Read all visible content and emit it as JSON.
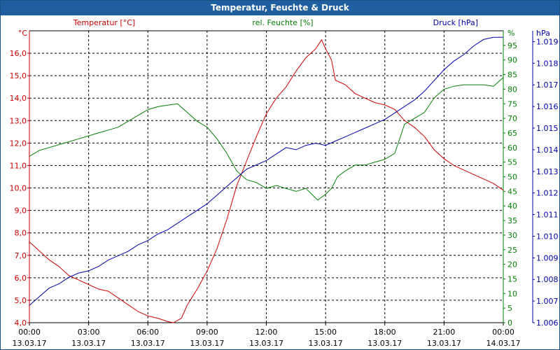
{
  "window": {
    "title": "Temperatur, Feuchte & Druck"
  },
  "colors": {
    "temperature": "#cc0000",
    "humidity": "#008000",
    "pressure": "#0000aa",
    "titlebar": "#1f5fa0"
  },
  "chart_data": {
    "type": "line",
    "title": "Temperatur, Feuchte & Druck",
    "grid": true,
    "x_tick_times": [
      "00:00",
      "03:00",
      "06:00",
      "09:00",
      "12:00",
      "15:00",
      "18:00",
      "21:00",
      "00:00"
    ],
    "x_tick_dates": [
      "13.03.17",
      "13.03.17",
      "13.03.17",
      "13.03.17",
      "13.03.17",
      "13.03.17",
      "13.03.17",
      "13.03.17",
      "14.03.17"
    ],
    "xlim_hours": [
      0,
      24
    ],
    "axes": {
      "temperature": {
        "label": "Temperatur [°C]",
        "unit": "°C",
        "ylim": [
          4,
          17
        ],
        "ticks": [
          "4,0",
          "5,0",
          "6,0",
          "7,0",
          "8,0",
          "9,0",
          "10,0",
          "11,0",
          "12,0",
          "13,0",
          "14,0",
          "15,0",
          "16,0"
        ]
      },
      "humidity": {
        "label": "rel. Feuchte [%]",
        "unit": "%",
        "ylim": [
          0,
          100
        ],
        "ticks": [
          "0",
          "5",
          "10",
          "15",
          "20",
          "25",
          "30",
          "35",
          "40",
          "45",
          "50",
          "55",
          "60",
          "65",
          "70",
          "75",
          "80",
          "85",
          "90",
          "95"
        ]
      },
      "pressure": {
        "label": "Druck [hPa]",
        "unit": "hPa",
        "ylim": [
          1.006,
          1.0195
        ],
        "ticks": [
          "1.006",
          "1.007",
          "1.008",
          "1.009",
          "1.010",
          "1.011",
          "1.012",
          "1.013",
          "1.014",
          "1.015",
          "1.016",
          "1.017",
          "1.018",
          "1.019"
        ]
      }
    },
    "series": [
      {
        "name": "Temperatur [°C]",
        "axis": "temperature",
        "points": [
          [
            0,
            7.6
          ],
          [
            0.5,
            7.2
          ],
          [
            1,
            6.8
          ],
          [
            1.5,
            6.5
          ],
          [
            2,
            6.1
          ],
          [
            2.5,
            5.9
          ],
          [
            3,
            5.7
          ],
          [
            3.5,
            5.5
          ],
          [
            4,
            5.4
          ],
          [
            4.5,
            5.1
          ],
          [
            5,
            4.8
          ],
          [
            5.5,
            4.5
          ],
          [
            6,
            4.3
          ],
          [
            6.5,
            4.2
          ],
          [
            7,
            4.05
          ],
          [
            7.3,
            4.0
          ],
          [
            7.7,
            4.2
          ],
          [
            8,
            4.8
          ],
          [
            8.5,
            5.5
          ],
          [
            9,
            6.3
          ],
          [
            9.5,
            7.3
          ],
          [
            10,
            8.6
          ],
          [
            10.5,
            10.1
          ],
          [
            11,
            11.2
          ],
          [
            11.5,
            12.3
          ],
          [
            12,
            13.3
          ],
          [
            12.5,
            14.0
          ],
          [
            13,
            14.5
          ],
          [
            13.5,
            15.2
          ],
          [
            14,
            15.8
          ],
          [
            14.5,
            16.2
          ],
          [
            14.8,
            16.6
          ],
          [
            15,
            16.2
          ],
          [
            15.3,
            15.7
          ],
          [
            15.5,
            14.8
          ],
          [
            16,
            14.6
          ],
          [
            16.5,
            14.2
          ],
          [
            17,
            14.0
          ],
          [
            17.5,
            13.8
          ],
          [
            18,
            13.7
          ],
          [
            18.5,
            13.5
          ],
          [
            19,
            13.0
          ],
          [
            19.5,
            12.7
          ],
          [
            20,
            12.3
          ],
          [
            20.5,
            11.7
          ],
          [
            21,
            11.3
          ],
          [
            21.5,
            11.0
          ],
          [
            22,
            10.8
          ],
          [
            22.5,
            10.6
          ],
          [
            23,
            10.4
          ],
          [
            23.5,
            10.2
          ],
          [
            24,
            9.9
          ]
        ]
      },
      {
        "name": "rel. Feuchte [%]",
        "axis": "humidity",
        "points": [
          [
            0,
            57
          ],
          [
            0.5,
            59
          ],
          [
            1,
            60
          ],
          [
            1.5,
            61
          ],
          [
            2,
            62
          ],
          [
            2.5,
            63
          ],
          [
            3,
            64
          ],
          [
            3.5,
            65
          ],
          [
            4,
            66
          ],
          [
            4.5,
            67
          ],
          [
            5,
            69
          ],
          [
            5.5,
            71
          ],
          [
            6,
            73
          ],
          [
            6.5,
            74
          ],
          [
            7,
            74.5
          ],
          [
            7.5,
            75
          ],
          [
            8,
            72
          ],
          [
            8.5,
            69
          ],
          [
            9,
            67
          ],
          [
            9.5,
            63
          ],
          [
            10,
            58
          ],
          [
            10.5,
            52
          ],
          [
            11,
            49
          ],
          [
            11.5,
            48
          ],
          [
            12,
            46
          ],
          [
            12.5,
            47
          ],
          [
            13,
            46
          ],
          [
            13.5,
            45
          ],
          [
            14,
            46
          ],
          [
            14.3,
            44
          ],
          [
            14.6,
            42
          ],
          [
            15,
            44
          ],
          [
            15.3,
            46
          ],
          [
            15.6,
            50
          ],
          [
            16,
            52
          ],
          [
            16.5,
            54
          ],
          [
            17,
            54
          ],
          [
            17.5,
            55
          ],
          [
            18,
            56
          ],
          [
            18.5,
            58
          ],
          [
            19,
            68
          ],
          [
            19.5,
            70
          ],
          [
            20,
            72
          ],
          [
            20.5,
            77
          ],
          [
            21,
            80
          ],
          [
            21.5,
            81
          ],
          [
            22,
            81.5
          ],
          [
            22.5,
            81.5
          ],
          [
            23,
            81.5
          ],
          [
            23.5,
            81
          ],
          [
            24,
            84
          ]
        ]
      },
      {
        "name": "Druck [hPa]",
        "axis": "pressure",
        "points": [
          [
            0,
            1.0068
          ],
          [
            0.5,
            1.0072
          ],
          [
            1,
            1.0076
          ],
          [
            1.5,
            1.0078
          ],
          [
            2,
            1.0081
          ],
          [
            2.5,
            1.0083
          ],
          [
            3,
            1.0084
          ],
          [
            3.5,
            1.0086
          ],
          [
            4,
            1.0089
          ],
          [
            4.5,
            1.0091
          ],
          [
            5,
            1.0093
          ],
          [
            5.5,
            1.0096
          ],
          [
            6,
            1.0098
          ],
          [
            6.5,
            1.0101
          ],
          [
            7,
            1.0103
          ],
          [
            7.5,
            1.0106
          ],
          [
            8,
            1.0109
          ],
          [
            8.5,
            1.0112
          ],
          [
            9,
            1.0115
          ],
          [
            9.5,
            1.0119
          ],
          [
            10,
            1.0123
          ],
          [
            10.5,
            1.0127
          ],
          [
            11,
            1.0131
          ],
          [
            11.5,
            1.0133
          ],
          [
            12,
            1.0135
          ],
          [
            12.5,
            1.0138
          ],
          [
            13,
            1.0141
          ],
          [
            13.5,
            1.014
          ],
          [
            14,
            1.0142
          ],
          [
            14.5,
            1.0143
          ],
          [
            15,
            1.0142
          ],
          [
            15.5,
            1.0144
          ],
          [
            16,
            1.0146
          ],
          [
            16.5,
            1.0148
          ],
          [
            17,
            1.015
          ],
          [
            17.5,
            1.0152
          ],
          [
            18,
            1.0154
          ],
          [
            18.5,
            1.0157
          ],
          [
            19,
            1.016
          ],
          [
            19.5,
            1.0163
          ],
          [
            20,
            1.0167
          ],
          [
            20.5,
            1.0172
          ],
          [
            21,
            1.0177
          ],
          [
            21.5,
            1.0181
          ],
          [
            22,
            1.0184
          ],
          [
            22.5,
            1.0188
          ],
          [
            23,
            1.0191
          ],
          [
            23.5,
            1.0192
          ],
          [
            24,
            1.0192
          ]
        ]
      }
    ]
  }
}
